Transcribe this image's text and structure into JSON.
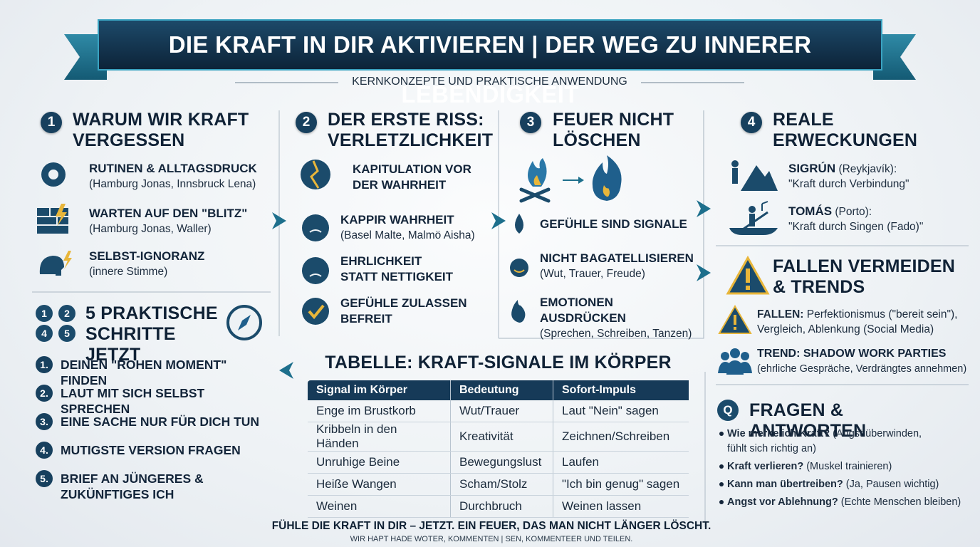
{
  "header": {
    "title": "DIE KRAFT IN DIR AKTIVIEREN | DER WEG ZU INNERER LEBENDIGKEIT",
    "subtitle": "KERNKONZEPTE UND PRAKTISCHE ANWENDUNG"
  },
  "sections": [
    {
      "number": "1",
      "title": "WARUM WIR KRAFT VERGESSEN",
      "items": [
        {
          "title": "RUTINEN & ALLTAGSDRUCK",
          "detail": "(Hamburg Jonas, Innsbruck Lena)"
        },
        {
          "title": "WARTEN AUF DEN \"BLITZ\"",
          "detail": "(Hamburg Jonas, Waller)"
        },
        {
          "title": "SELBST-IGNORANZ",
          "detail": "(innere Stimme)"
        }
      ]
    },
    {
      "number": "2",
      "title": "DER ERSTE RISS: VERLETZLICHKEIT",
      "items": [
        {
          "title": "KAPITULATION VOR DER WAHRHEIT"
        },
        {
          "title": "KAPPIR WAHRHEIT",
          "detail": "(Basel Malte, Malmö Aisha)"
        },
        {
          "title": "EHRLICHKEIT STATT NETTIGKEIT"
        },
        {
          "title": "GEFÜHLE ZULASSEN BEFREIT"
        }
      ]
    },
    {
      "number": "3",
      "title": "FEUER NICHT LÖSCHEN",
      "items": [
        {
          "title": "GEFÜHLE SIND SIGNALE"
        },
        {
          "title": "NICHT BAGATELLISIEREN",
          "detail": "(Wut, Trauer, Freude)"
        },
        {
          "title": "EMOTIONEN AUSDRÜCKEN",
          "detail": "(Sprechen, Schreiben, Tanzen)"
        }
      ]
    },
    {
      "number": "4",
      "title": "REALE ERWECKUNGEN",
      "items": [
        {
          "name": "SIGRÚN",
          "place": "(Reykjavík):",
          "quote": "\"Kraft durch Verbindung\""
        },
        {
          "name": "TOMÁS",
          "place": "(Porto):",
          "quote": "\"Kraft durch Singen (Fado)\""
        }
      ]
    }
  ],
  "steps": {
    "icon_digits": [
      "1",
      "2",
      "4",
      "5"
    ],
    "title": "5 PRAKTISCHE SCHRITTE JETZT",
    "items": [
      {
        "number": "1.",
        "text": "DEINEN \"ROHEN MOMENT\" FINDEN"
      },
      {
        "number": "2.",
        "text": "LAUT MIT SICH SELBST SPRECHEN"
      },
      {
        "number": "3.",
        "text": "EINE SACHE NUR FÜR DICH TUN"
      },
      {
        "number": "4.",
        "text": "MUTIGSTE VERSION FRAGEN"
      },
      {
        "number": "5.",
        "text": "BRIEF AN JÜNGERES & ZUKÜNFTIGES ICH"
      }
    ]
  },
  "table": {
    "title": "TABELLE: KRAFT-SIGNALE IM KÖRPER",
    "headers": [
      "Signal im Körper",
      "Bedeutung",
      "Sofort-Impuls"
    ],
    "rows": [
      [
        "Enge im Brustkorb",
        "Wut/Trauer",
        "Laut \"Nein\" sagen"
      ],
      [
        "Kribbeln in den Händen",
        "Kreativität",
        "Zeichnen/Schreiben"
      ],
      [
        "Unruhige Beine",
        "Bewegungslust",
        "Laufen"
      ],
      [
        "Heiße Wangen",
        "Scham/Stolz",
        "\"Ich bin genug\" sagen"
      ],
      [
        "Weinen",
        "Durchbruch",
        "Weinen lassen"
      ]
    ]
  },
  "traps": {
    "title": "FALLEN VERMEIDEN & TRENDS",
    "items": [
      {
        "label": "FALLEN:",
        "text": "Perfektionismus (\"bereit sein\"), Vergleich, Ablenkung (Social Media)"
      },
      {
        "label": "TREND: SHADOW WORK PARTIES",
        "text": "(ehrliche Gespräche, Verdrängtes annehmen)"
      }
    ]
  },
  "faq": {
    "icon": "Q",
    "title": "FRAGEN & ANTWORTEN",
    "items": [
      {
        "q": "Wie merke ich Kraft?",
        "a": "(Angst überwinden, fühlt sich richtig an)"
      },
      {
        "q": "Kraft verlieren?",
        "a": "(Muskel trainieren)"
      },
      {
        "q": "Kann man übertreiben?",
        "a": "(Ja, Pausen wichtig)"
      },
      {
        "q": "Angst vor Ablehnung?",
        "a": "(Echte Menschen bleiben)"
      }
    ]
  },
  "footer": {
    "tagline": "FÜHLE DIE KRAFT IN DIR – JETZT. EIN FEUER, DAS MAN NICHT LÄNGER LÖSCHT.",
    "note": "WIR HAPT HADE WOTER, KOMMENTEN | SEN, KOMMENTEER UND TEILEN."
  }
}
